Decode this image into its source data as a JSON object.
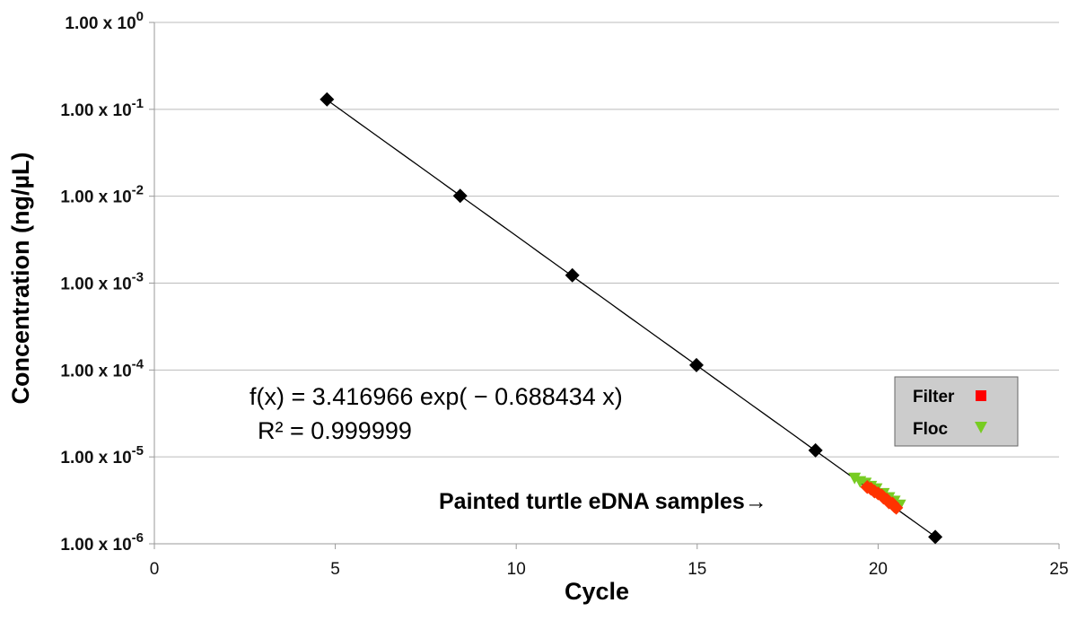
{
  "chart_data": {
    "type": "scatter",
    "xlabel": "Cycle",
    "ylabel": "Concentration (ng/µL)",
    "xlim": [
      0,
      25
    ],
    "x_ticks": [
      0,
      5,
      10,
      15,
      20,
      25
    ],
    "y_scale": "log10",
    "ylim": [
      1e-06,
      1
    ],
    "y_ticks": [
      {
        "mantissa": "1.00 x 10",
        "exp": "0"
      },
      {
        "mantissa": "1.00 x 10",
        "exp": "-1"
      },
      {
        "mantissa": "1.00 x 10",
        "exp": "-2"
      },
      {
        "mantissa": "1.00 x 10",
        "exp": "-3"
      },
      {
        "mantissa": "1.00 x 10",
        "exp": "-4"
      },
      {
        "mantissa": "1.00 x 10",
        "exp": "-5"
      },
      {
        "mantissa": "1.00 x 10",
        "exp": "-6"
      }
    ],
    "grid": "horizontal",
    "series": [
      {
        "marker": "diamond",
        "color": "#000000",
        "points": [
          [
            4.77,
            0.13
          ],
          [
            8.45,
            0.0101
          ],
          [
            11.55,
            0.00123
          ],
          [
            14.98,
            0.000114
          ],
          [
            18.27,
            1.19e-05
          ],
          [
            21.58,
            1.2e-06
          ]
        ]
      },
      {
        "name": "Filter",
        "marker": "square",
        "color": "#ff3300",
        "points": [
          [
            19.7,
            4.5e-06
          ],
          [
            19.8,
            4.3e-06
          ],
          [
            19.9,
            4e-06
          ],
          [
            20.0,
            3.8e-06
          ],
          [
            20.1,
            3.6e-06
          ],
          [
            20.15,
            3.4e-06
          ],
          [
            20.25,
            3.2e-06
          ],
          [
            20.3,
            3e-06
          ],
          [
            20.4,
            2.9e-06
          ],
          [
            20.45,
            2.7e-06
          ],
          [
            20.5,
            2.6e-06
          ]
        ]
      },
      {
        "name": "Floc",
        "marker": "triangle-down",
        "color": "#77cc22",
        "points": [
          [
            19.35,
            5.7e-06
          ],
          [
            19.5,
            5.2e-06
          ],
          [
            19.65,
            5e-06
          ],
          [
            19.8,
            4.6e-06
          ],
          [
            19.95,
            4.3e-06
          ],
          [
            20.15,
            3.8e-06
          ],
          [
            20.3,
            3.4e-06
          ],
          [
            20.45,
            3.1e-06
          ],
          [
            20.6,
            2.8e-06
          ]
        ]
      }
    ],
    "trendline": {
      "a": 3.416966,
      "b": -0.688434,
      "x_range": [
        4.77,
        21.58
      ],
      "color": "#000000"
    },
    "equation_lines": [
      "f(x) = 3.416966 exp( − 0.688434 x)",
      "R² = 0.999999"
    ],
    "annotation": "Painted turtle eDNA samples→",
    "legend": {
      "position": "right",
      "items": [
        "Filter",
        "Floc"
      ]
    }
  }
}
